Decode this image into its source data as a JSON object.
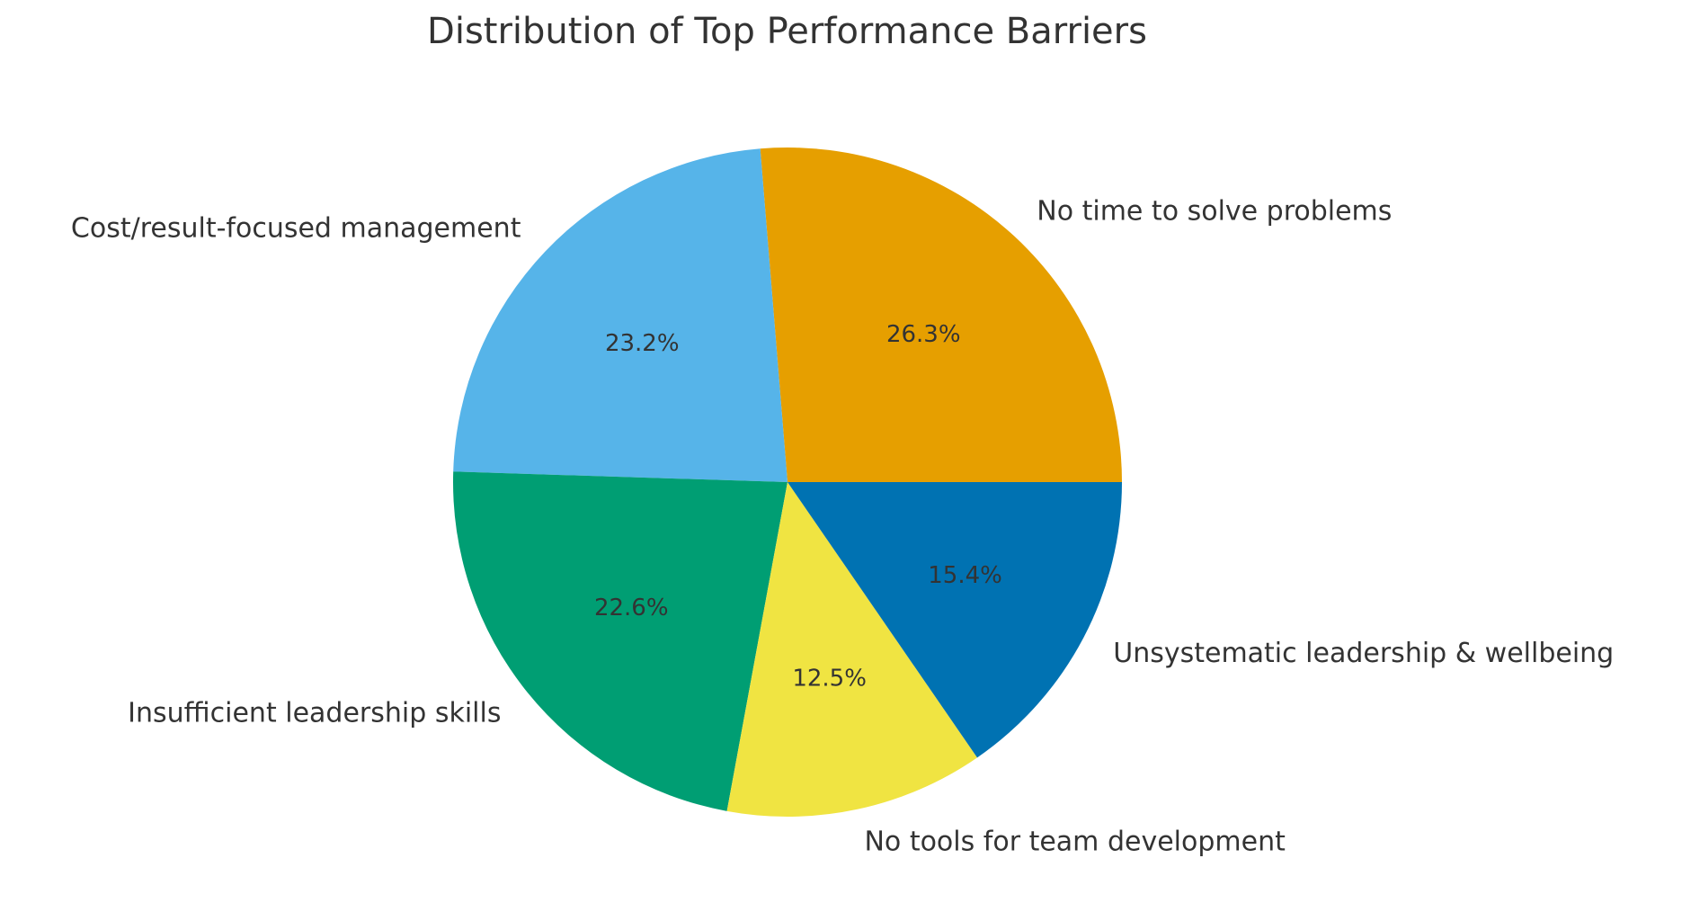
{
  "chart_data": {
    "type": "pie",
    "title": "Distribution of Top Performance Barriers",
    "start_angle_deg": 0,
    "direction": "counterclockwise",
    "slices": [
      {
        "label": "No time to solve problems",
        "value": 26.3,
        "pct_label": "26.3%",
        "color": "#E69F00"
      },
      {
        "label": "Cost/result-focused management",
        "value": 23.2,
        "pct_label": "23.2%",
        "color": "#56B4E9"
      },
      {
        "label": "Insufficient leadership skills",
        "value": 22.6,
        "pct_label": "22.6%",
        "color": "#009E73"
      },
      {
        "label": "No tools for team development",
        "value": 12.5,
        "pct_label": "12.5%",
        "color": "#F0E442"
      },
      {
        "label": "Unsystematic leadership & wellbeing",
        "value": 15.4,
        "pct_label": "15.4%",
        "color": "#0072B2"
      }
    ]
  }
}
